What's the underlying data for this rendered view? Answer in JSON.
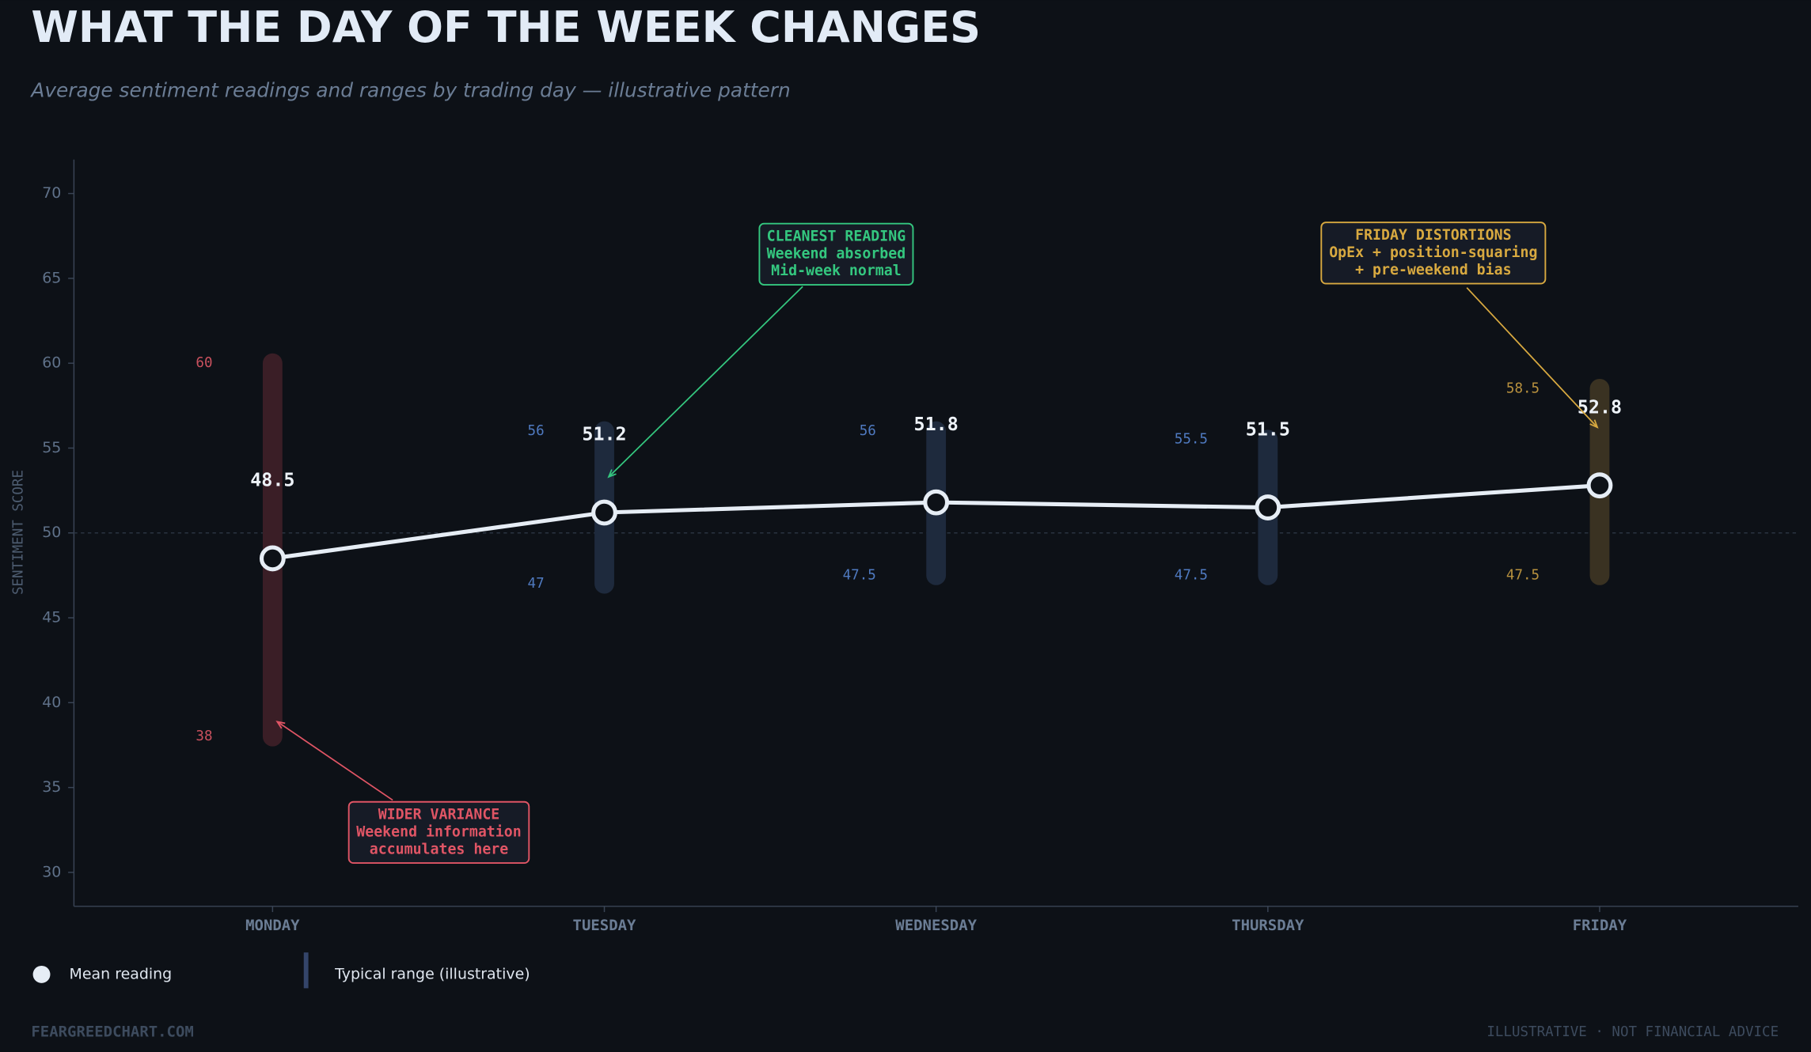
{
  "chart_data": {
    "type": "line",
    "title": "WHAT THE DAY OF THE WEEK CHANGES",
    "subtitle": "Average sentiment readings and ranges by trading day — illustrative pattern",
    "y_label": "SENTIMENT SCORE",
    "categories": [
      "MONDAY",
      "TUESDAY",
      "WEDNESDAY",
      "THURSDAY",
      "FRIDAY"
    ],
    "series": [
      {
        "name": "Mean reading",
        "color": "#e6edf5",
        "values": [
          48.5,
          51.2,
          51.8,
          51.5,
          52.8
        ]
      }
    ],
    "ranges": {
      "name": "Typical range (illustrative)",
      "low": [
        38,
        47,
        47.5,
        47.5,
        47.5
      ],
      "high": [
        60,
        56,
        56,
        55.5,
        58.5
      ],
      "colors": [
        "#3a1e26",
        "#1e2a3d",
        "#1e2a3d",
        "#1e2a3d",
        "#3a3222"
      ],
      "label_colors": [
        "#c9515e",
        "#4f7ac0",
        "#4f7ac0",
        "#4f7ac0",
        "#b8913e"
      ],
      "legend_color": "#34456a"
    },
    "ylim": [
      28,
      72
    ],
    "yticks": [
      30,
      35,
      40,
      45,
      50,
      55,
      60,
      65,
      70
    ],
    "reference_line": 50,
    "annotations": [
      {
        "lines": [
          "WIDER VARIANCE",
          "Weekend information",
          "accumulates here"
        ],
        "color": "#e05565"
      },
      {
        "lines": [
          "CLEANEST READING",
          "Weekend absorbed",
          "Mid-week normal"
        ],
        "color": "#34c77f"
      },
      {
        "lines": [
          "FRIDAY DISTORTIONS",
          "OpEx + position-squaring",
          "+ pre-weekend bias"
        ],
        "color": "#d8a940"
      }
    ],
    "footer": {
      "left": "FEARGREEDCHART.COM",
      "right": "ILLUSTRATIVE · NOT FINANCIAL ADVICE"
    }
  }
}
